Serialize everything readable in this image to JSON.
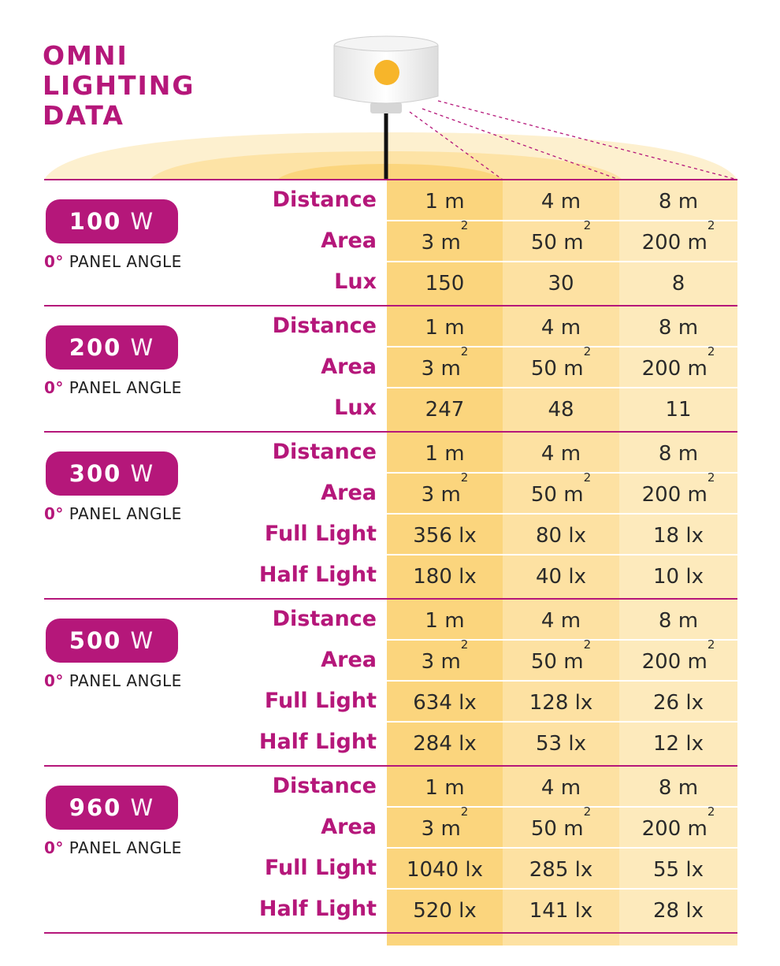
{
  "title": [
    "OMNI",
    "LIGHTING",
    "DATA"
  ],
  "colors": {
    "accent": "#b5177a",
    "col1": "#fbd57d",
    "col2": "#fde1a2",
    "col3": "#fdeabc"
  },
  "icons": {
    "lamp": "omni-lamp-icon"
  },
  "sections": [
    {
      "power": "100",
      "unit": "W",
      "deg": "0°",
      "angle_text": " PANEL ANGLE",
      "rows": [
        {
          "label": "Distance",
          "values": [
            "1 m",
            "4 m",
            "8 m"
          ]
        },
        {
          "label": "Area",
          "values": [
            "3 m",
            "50 m",
            "200 m"
          ],
          "sup": "2"
        },
        {
          "label": "Lux",
          "values": [
            "150",
            "30",
            "8"
          ]
        }
      ]
    },
    {
      "power": "200",
      "unit": "W",
      "deg": "0°",
      "angle_text": " PANEL ANGLE",
      "rows": [
        {
          "label": "Distance",
          "values": [
            "1 m",
            "4 m",
            "8 m"
          ]
        },
        {
          "label": "Area",
          "values": [
            "3 m",
            "50 m",
            "200 m"
          ],
          "sup": "2"
        },
        {
          "label": "Lux",
          "values": [
            "247",
            "48",
            "11"
          ]
        }
      ]
    },
    {
      "power": "300",
      "unit": "W",
      "deg": "0°",
      "angle_text": " PANEL ANGLE",
      "rows": [
        {
          "label": "Distance",
          "values": [
            "1 m",
            "4 m",
            "8 m"
          ]
        },
        {
          "label": "Area",
          "values": [
            "3 m",
            "50 m",
            "200 m"
          ],
          "sup": "2"
        },
        {
          "label": "Full Light",
          "values": [
            "356 lx",
            "80 lx",
            "18 lx"
          ]
        },
        {
          "label": "Half Light",
          "values": [
            "180 lx",
            "40 lx",
            "10 lx"
          ]
        }
      ]
    },
    {
      "power": "500",
      "unit": "W",
      "deg": "0°",
      "angle_text": " PANEL ANGLE",
      "rows": [
        {
          "label": "Distance",
          "values": [
            "1 m",
            "4 m",
            "8 m"
          ]
        },
        {
          "label": "Area",
          "values": [
            "3 m",
            "50 m",
            "200 m"
          ],
          "sup": "2"
        },
        {
          "label": "Full Light",
          "values": [
            "634 lx",
            "128 lx",
            "26 lx"
          ]
        },
        {
          "label": "Half Light",
          "values": [
            "284 lx",
            "53 lx",
            "12 lx"
          ]
        }
      ]
    },
    {
      "power": "960",
      "unit": "W",
      "deg": "0°",
      "angle_text": " PANEL ANGLE",
      "rows": [
        {
          "label": "Distance",
          "values": [
            "1 m",
            "4 m",
            "8 m"
          ]
        },
        {
          "label": "Area",
          "values": [
            "3 m",
            "50 m",
            "200 m"
          ],
          "sup": "2"
        },
        {
          "label": "Full Light",
          "values": [
            "1040 lx",
            "285 lx",
            "55 lx"
          ]
        },
        {
          "label": "Half Light",
          "values": [
            "520 lx",
            "141 lx",
            "28 lx"
          ]
        }
      ]
    }
  ]
}
